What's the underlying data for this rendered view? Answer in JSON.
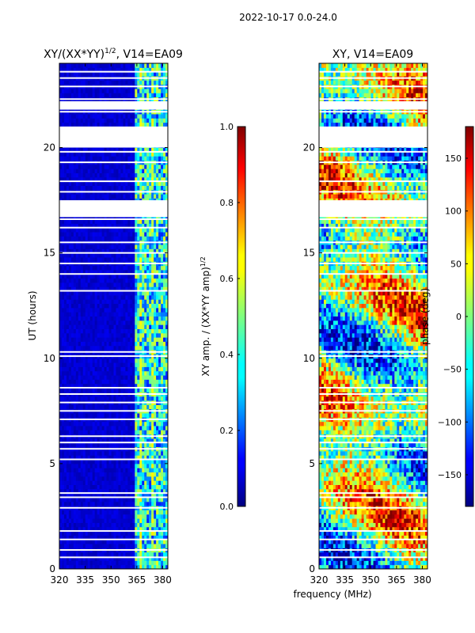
{
  "figure": {
    "suptitle": "2022-10-17 0.0-24.0",
    "xlabel": "frequency (MHz)"
  },
  "chart_data": [
    {
      "type": "heatmap",
      "title_base": "XY/(XX*YY)",
      "title_exp": "1/2",
      "title_suffix": ", V14=EA09",
      "xlabel": "",
      "ylabel": "UT (hours)",
      "xlim": [
        320,
        383
      ],
      "ylim": [
        0,
        24
      ],
      "xticks": [
        320,
        335,
        350,
        365,
        380
      ],
      "yticks": [
        0,
        5,
        10,
        15,
        20
      ],
      "colorbar": {
        "label_base": "XY amp. / (XX*YY amp)",
        "label_exp": "1/2",
        "range": [
          0.0,
          1.0
        ],
        "ticks": [
          "0.0",
          "0.2",
          "0.4",
          "0.6",
          "0.8",
          "1.0"
        ],
        "colormap": "jet"
      },
      "gap_hours": [
        0.55,
        0.9,
        1.4,
        1.8,
        2.9,
        3.4,
        3.6,
        5.2,
        5.7,
        6.0,
        6.3,
        7.1,
        7.5,
        7.9,
        8.3,
        8.6,
        10.1,
        10.3,
        13.2,
        14.0,
        14.5,
        15.0,
        15.5,
        16.2,
        16.6,
        16.9,
        17.2,
        17.9,
        18.4,
        19.3,
        19.8,
        21.7,
        22.3,
        22.9,
        23.3,
        23.6
      ],
      "gap_bands": [
        [
          16.7,
          17.5
        ],
        [
          20.0,
          21.0
        ],
        [
          21.8,
          22.2
        ]
      ]
    },
    {
      "type": "heatmap",
      "title": "XY, V14=EA09",
      "xlabel": "",
      "ylabel": "",
      "xlim": [
        320,
        383
      ],
      "ylim": [
        0,
        24
      ],
      "xticks": [
        320,
        335,
        350,
        365,
        380
      ],
      "yticks": [
        0,
        5,
        10,
        15,
        20
      ],
      "colorbar": {
        "label": "phase (deg)",
        "range": [
          -180,
          180
        ],
        "ticks": [
          "−150",
          "−100",
          "−50",
          "0",
          "50",
          "100",
          "150"
        ],
        "colormap": "jet"
      },
      "gap_hours": [
        0.55,
        0.9,
        1.4,
        1.8,
        2.9,
        3.4,
        3.6,
        5.2,
        5.7,
        6.0,
        6.3,
        7.1,
        7.5,
        7.9,
        8.3,
        8.6,
        10.1,
        10.3,
        13.2,
        14.0,
        14.5,
        15.0,
        15.5,
        16.2,
        16.6,
        16.9,
        17.2,
        17.9,
        18.4,
        19.3,
        19.8,
        21.7,
        22.3,
        22.9,
        23.3,
        23.6
      ],
      "gap_bands": [
        [
          16.7,
          17.5
        ],
        [
          20.0,
          21.0
        ],
        [
          21.8,
          22.2
        ]
      ]
    }
  ]
}
